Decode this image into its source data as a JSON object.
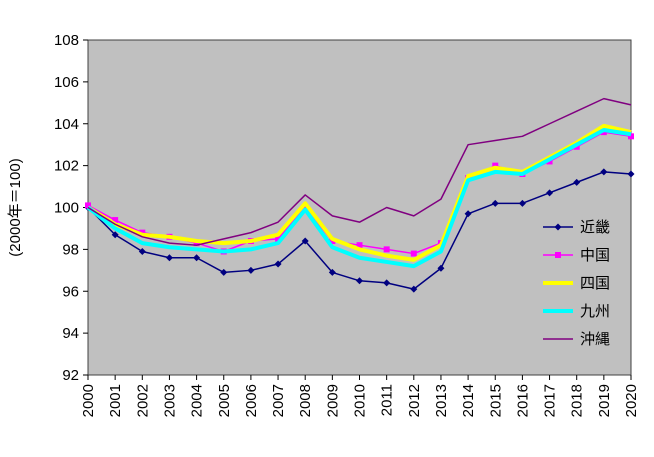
{
  "chart_data": {
    "type": "line",
    "title": "",
    "ylabel": "(2000年＝100)",
    "xlabel": "",
    "ylim": [
      92,
      108
    ],
    "ytick_step": 2,
    "grid": false,
    "plot_bg": "#c0c0c0",
    "plot_border": "#404040",
    "legend_position": "inside-right",
    "categories": [
      "2000",
      "2001",
      "2002",
      "2003",
      "2004",
      "2005",
      "2006",
      "2007",
      "2008",
      "2009",
      "2010",
      "2011",
      "2012",
      "2013",
      "2014",
      "2015",
      "2016",
      "2017",
      "2018",
      "2019",
      "2020"
    ],
    "series": [
      {
        "key": "kinki",
        "name": "近畿",
        "color": "#000080",
        "marker": "diamond",
        "width": 1.5,
        "values": [
          100.0,
          98.7,
          97.9,
          97.6,
          97.6,
          96.9,
          97.0,
          97.3,
          98.4,
          96.9,
          96.5,
          96.4,
          96.1,
          97.1,
          99.7,
          100.2,
          100.2,
          100.7,
          101.2,
          101.7,
          101.6
        ]
      },
      {
        "key": "chugoku",
        "name": "中国",
        "color": "#ff00ff",
        "marker": "square",
        "width": 1.5,
        "values": [
          100.1,
          99.4,
          98.8,
          98.6,
          98.3,
          97.9,
          98.4,
          98.5,
          100.0,
          98.4,
          98.2,
          98.0,
          97.8,
          98.3,
          101.4,
          102.0,
          101.6,
          102.2,
          102.9,
          103.6,
          103.4
        ]
      },
      {
        "key": "shikoku",
        "name": "四国",
        "color": "#ffff00",
        "marker": "none",
        "width": 4,
        "values": [
          100.0,
          99.2,
          98.7,
          98.6,
          98.4,
          98.3,
          98.4,
          98.7,
          100.2,
          98.5,
          98.0,
          97.7,
          97.5,
          98.2,
          101.5,
          101.9,
          101.7,
          102.4,
          103.1,
          103.9,
          103.6
        ]
      },
      {
        "key": "kyushu",
        "name": "九州",
        "color": "#00ffff",
        "marker": "none",
        "width": 4,
        "values": [
          100.0,
          99.0,
          98.3,
          98.1,
          98.0,
          97.9,
          98.0,
          98.3,
          99.9,
          98.1,
          97.6,
          97.4,
          97.2,
          97.9,
          101.3,
          101.7,
          101.6,
          102.3,
          103.0,
          103.7,
          103.5
        ]
      },
      {
        "key": "okinawa",
        "name": "沖縄",
        "color": "#800080",
        "marker": "none",
        "width": 1.5,
        "values": [
          100.0,
          99.2,
          98.6,
          98.3,
          98.2,
          98.5,
          98.8,
          99.3,
          100.6,
          99.6,
          99.3,
          100.0,
          99.6,
          100.4,
          103.0,
          103.2,
          103.4,
          104.0,
          104.6,
          105.2,
          104.9
        ]
      }
    ]
  }
}
